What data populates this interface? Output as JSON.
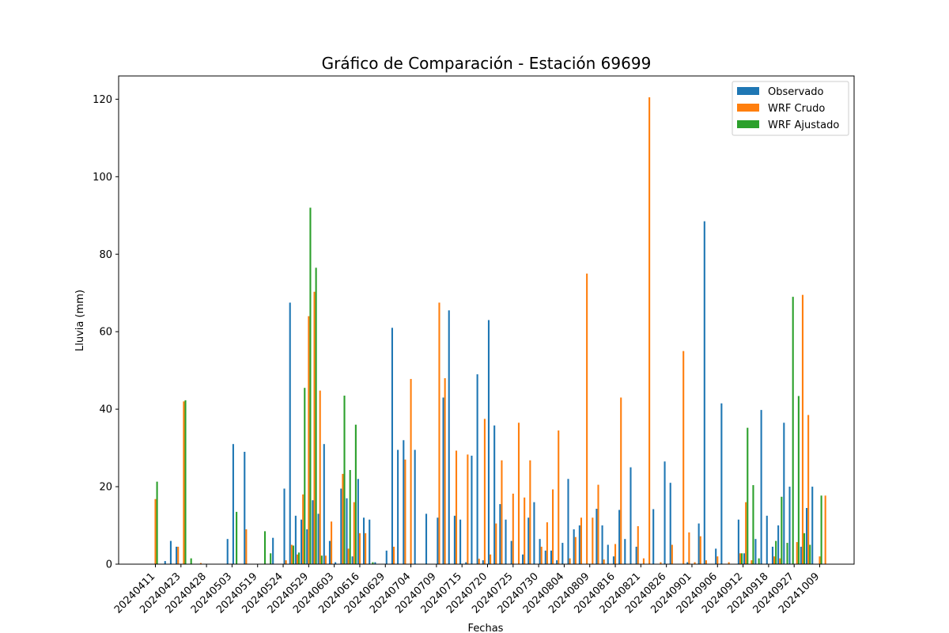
{
  "chart_data": {
    "type": "bar",
    "title": "Gráfico de Comparación - Estación 69699",
    "xlabel": "Fechas",
    "ylabel": "Lluvia (mm)",
    "ylim": [
      0,
      126
    ],
    "yticks": [
      0,
      20,
      40,
      60,
      80,
      100,
      120
    ],
    "xtick_labels": [
      "20240411",
      "20240423",
      "20240428",
      "20240503",
      "20240519",
      "20240524",
      "20240529",
      "20240603",
      "20240616",
      "20240629",
      "20240704",
      "20240709",
      "20240715",
      "20240720",
      "20240725",
      "20240730",
      "20240804",
      "20240809",
      "20240816",
      "20240821",
      "20240826",
      "20240901",
      "20240906",
      "20240912",
      "20240918",
      "20240927",
      "20241009"
    ],
    "legend_position": "top-right",
    "grid": false,
    "series": [
      {
        "name": "Observado",
        "color": "#1f77b4",
        "values": [
          0,
          0,
          0.8,
          6,
          4.5,
          0,
          0,
          0,
          0,
          0,
          0,
          0,
          0,
          6.5,
          31,
          0,
          29,
          0,
          0,
          0,
          0,
          6.8,
          0,
          19.5,
          67.5,
          12.5,
          11.5,
          9,
          16.5,
          13,
          31,
          6,
          0.5,
          19.5,
          17,
          2,
          22,
          12,
          11.5,
          0.5,
          0,
          3.5,
          61,
          29.5,
          32,
          0,
          29.5,
          0,
          13,
          0,
          12,
          43,
          65.5,
          12.5,
          11.5,
          0.5,
          28,
          49,
          1,
          63,
          35.8,
          15.5,
          11.5,
          6,
          0,
          2.5,
          12,
          16,
          6.5,
          3.5,
          3.5,
          1,
          5.5,
          22,
          9,
          10,
          0,
          0,
          14.3,
          10,
          5,
          2,
          14,
          6.5,
          25,
          4.5,
          0,
          0,
          14.2,
          0,
          26.5,
          21,
          0,
          0,
          0.5,
          0,
          10.5,
          88.5,
          0,
          4,
          41.5,
          0,
          0,
          11.5,
          2.8,
          0,
          6.5,
          39.8,
          12.5,
          4.5,
          10,
          36.5,
          20,
          0,
          4.5,
          14.5,
          20,
          0
        ]
      },
      {
        "name": "WRF Crudo",
        "color": "#ff7f0e",
        "values": [
          16.8,
          0,
          0,
          0,
          4.5,
          42,
          0,
          0,
          0.3,
          0,
          0,
          0,
          0,
          0,
          0,
          0,
          9,
          0,
          0,
          0,
          0,
          0,
          0,
          1,
          5,
          2.5,
          18,
          64,
          70.3,
          44.8,
          2.2,
          11,
          0,
          23.3,
          4,
          16,
          8,
          8,
          0,
          0,
          0,
          0,
          4.5,
          0,
          27,
          47.8,
          0,
          0,
          0,
          0,
          67.5,
          48,
          0,
          29.3,
          0,
          28.3,
          0,
          1.4,
          37.5,
          2.5,
          10.5,
          26.8,
          0,
          18.2,
          36.5,
          17.2,
          26.8,
          0,
          4.5,
          10.8,
          19.3,
          34.5,
          0,
          1.5,
          7,
          12,
          75,
          12,
          20.5,
          1.2,
          0,
          5.2,
          43,
          0,
          0,
          9.8,
          1.5,
          120.5,
          0,
          0.5,
          0,
          5,
          0,
          55,
          8.2,
          0.5,
          7.2,
          1,
          0,
          2,
          0,
          0.5,
          0,
          2.8,
          16,
          1,
          0,
          0,
          0,
          2,
          1.5,
          0,
          0,
          5.7,
          69.5,
          38.5,
          0,
          2,
          17.7,
          0
        ]
      },
      {
        "name": "WRF Ajustado",
        "color": "#2ca02c",
        "values": [
          21.3,
          0,
          0,
          0,
          0,
          42.3,
          1.5,
          0,
          0,
          0,
          0,
          0,
          0,
          0,
          13.5,
          0,
          0,
          0,
          0,
          8.5,
          2.8,
          0,
          0,
          0,
          4.8,
          3,
          45.5,
          92,
          76.5,
          2.2,
          0,
          0,
          0,
          43.5,
          24.3,
          36,
          0,
          0,
          0.5,
          0,
          0,
          0,
          0,
          0,
          0,
          0,
          0,
          0,
          0,
          0,
          0,
          0,
          0,
          0,
          0,
          0,
          0,
          0,
          0,
          0,
          0,
          0,
          0,
          0,
          0,
          0,
          0,
          0,
          0,
          0,
          0,
          0,
          0,
          0,
          0,
          0,
          0,
          0,
          0,
          0,
          0,
          0,
          0,
          0,
          0,
          0,
          0,
          0,
          0,
          0,
          0,
          0,
          0,
          0,
          0,
          0,
          0,
          0,
          0,
          0,
          0,
          0,
          0,
          2.8,
          35.2,
          20.4,
          1.5,
          0,
          0,
          6,
          17.4,
          5.5,
          69,
          43.4,
          8,
          5,
          0,
          17.7,
          0,
          0
        ]
      }
    ]
  }
}
